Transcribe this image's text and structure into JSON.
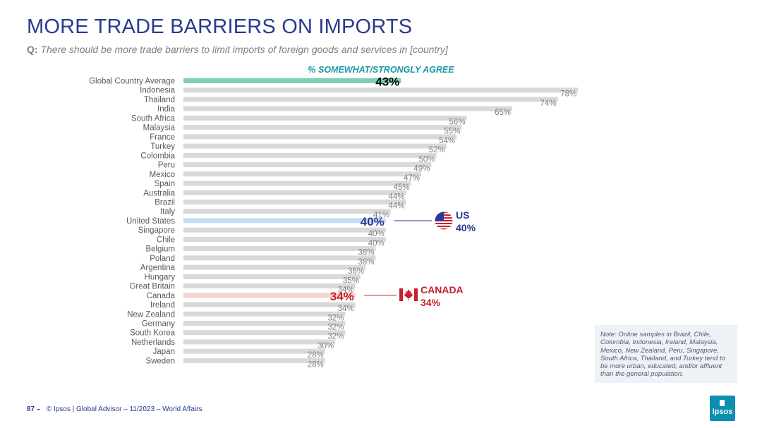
{
  "title": "MORE TRADE BARRIERS ON IMPORTS",
  "question": {
    "prefix": "Q:",
    "text": "There should be more trade barriers to limit imports of foreign goods and services in [country]"
  },
  "series_label": "% SOMEWHAT/STRONGLY AGREE",
  "colors": {
    "title": "#2b3a8f",
    "bar_default": "#d9d9d9",
    "bar_global": "#7dcfb6",
    "bar_us": "#c9dcf6",
    "bar_canada": "#f7d4d0",
    "us_accent": "#2b3a8f",
    "canada_accent": "#c8202a"
  },
  "callouts": {
    "us": {
      "name": "US",
      "value": "40%"
    },
    "canada": {
      "name": "CANADA",
      "value": "34%"
    }
  },
  "note": "Note: Online samples in Brazil, Chile, Colombia, Indonesia, Ireland, Malaysia, Mexico, New Zealand, Peru, Singapore, South Africa, Thailand, and Turkey tend to be more urban, educated, and/or affluent than the general population.",
  "footer": {
    "page": "87 –",
    "text": "© Ipsos | Global Advisor – 11/2023 – World Affairs"
  },
  "logo_text": "Ipsos",
  "chart_data": {
    "type": "bar",
    "orientation": "horizontal",
    "xlim": [
      0,
      100
    ],
    "categories": [
      "Global Country Average",
      "Indonesia",
      "Thailand",
      "India",
      "South Africa",
      "Malaysia",
      "France",
      "Turkey",
      "Colombia",
      "Peru",
      "Mexico",
      "Spain",
      "Australia",
      "Brazil",
      "Italy",
      "United States",
      "Singapore",
      "Chile",
      "Belgium",
      "Poland",
      "Argentina",
      "Hungary",
      "Great Britain",
      "Canada",
      "Ireland",
      "New Zealand",
      "Germany",
      "South Korea",
      "Netherlands",
      "Japan",
      "Sweden"
    ],
    "values": [
      43,
      78,
      74,
      65,
      56,
      55,
      54,
      52,
      50,
      49,
      47,
      45,
      44,
      44,
      41,
      40,
      40,
      40,
      38,
      38,
      36,
      35,
      34,
      34,
      34,
      32,
      32,
      32,
      30,
      28,
      28
    ],
    "value_labels": [
      "43%",
      "78%",
      "74%",
      "65%",
      "56%",
      "55%",
      "54%",
      "52%",
      "50%",
      "49%",
      "47%",
      "45%",
      "44%",
      "44%",
      "41%",
      "40%",
      "40%",
      "40%",
      "38%",
      "38%",
      "36%",
      "35%",
      "34%",
      "34%",
      "34%",
      "32%",
      "32%",
      "32%",
      "30%",
      "28%",
      "28%"
    ],
    "highlights": {
      "Global Country Average": "global",
      "United States": "us",
      "Canada": "canada"
    }
  }
}
